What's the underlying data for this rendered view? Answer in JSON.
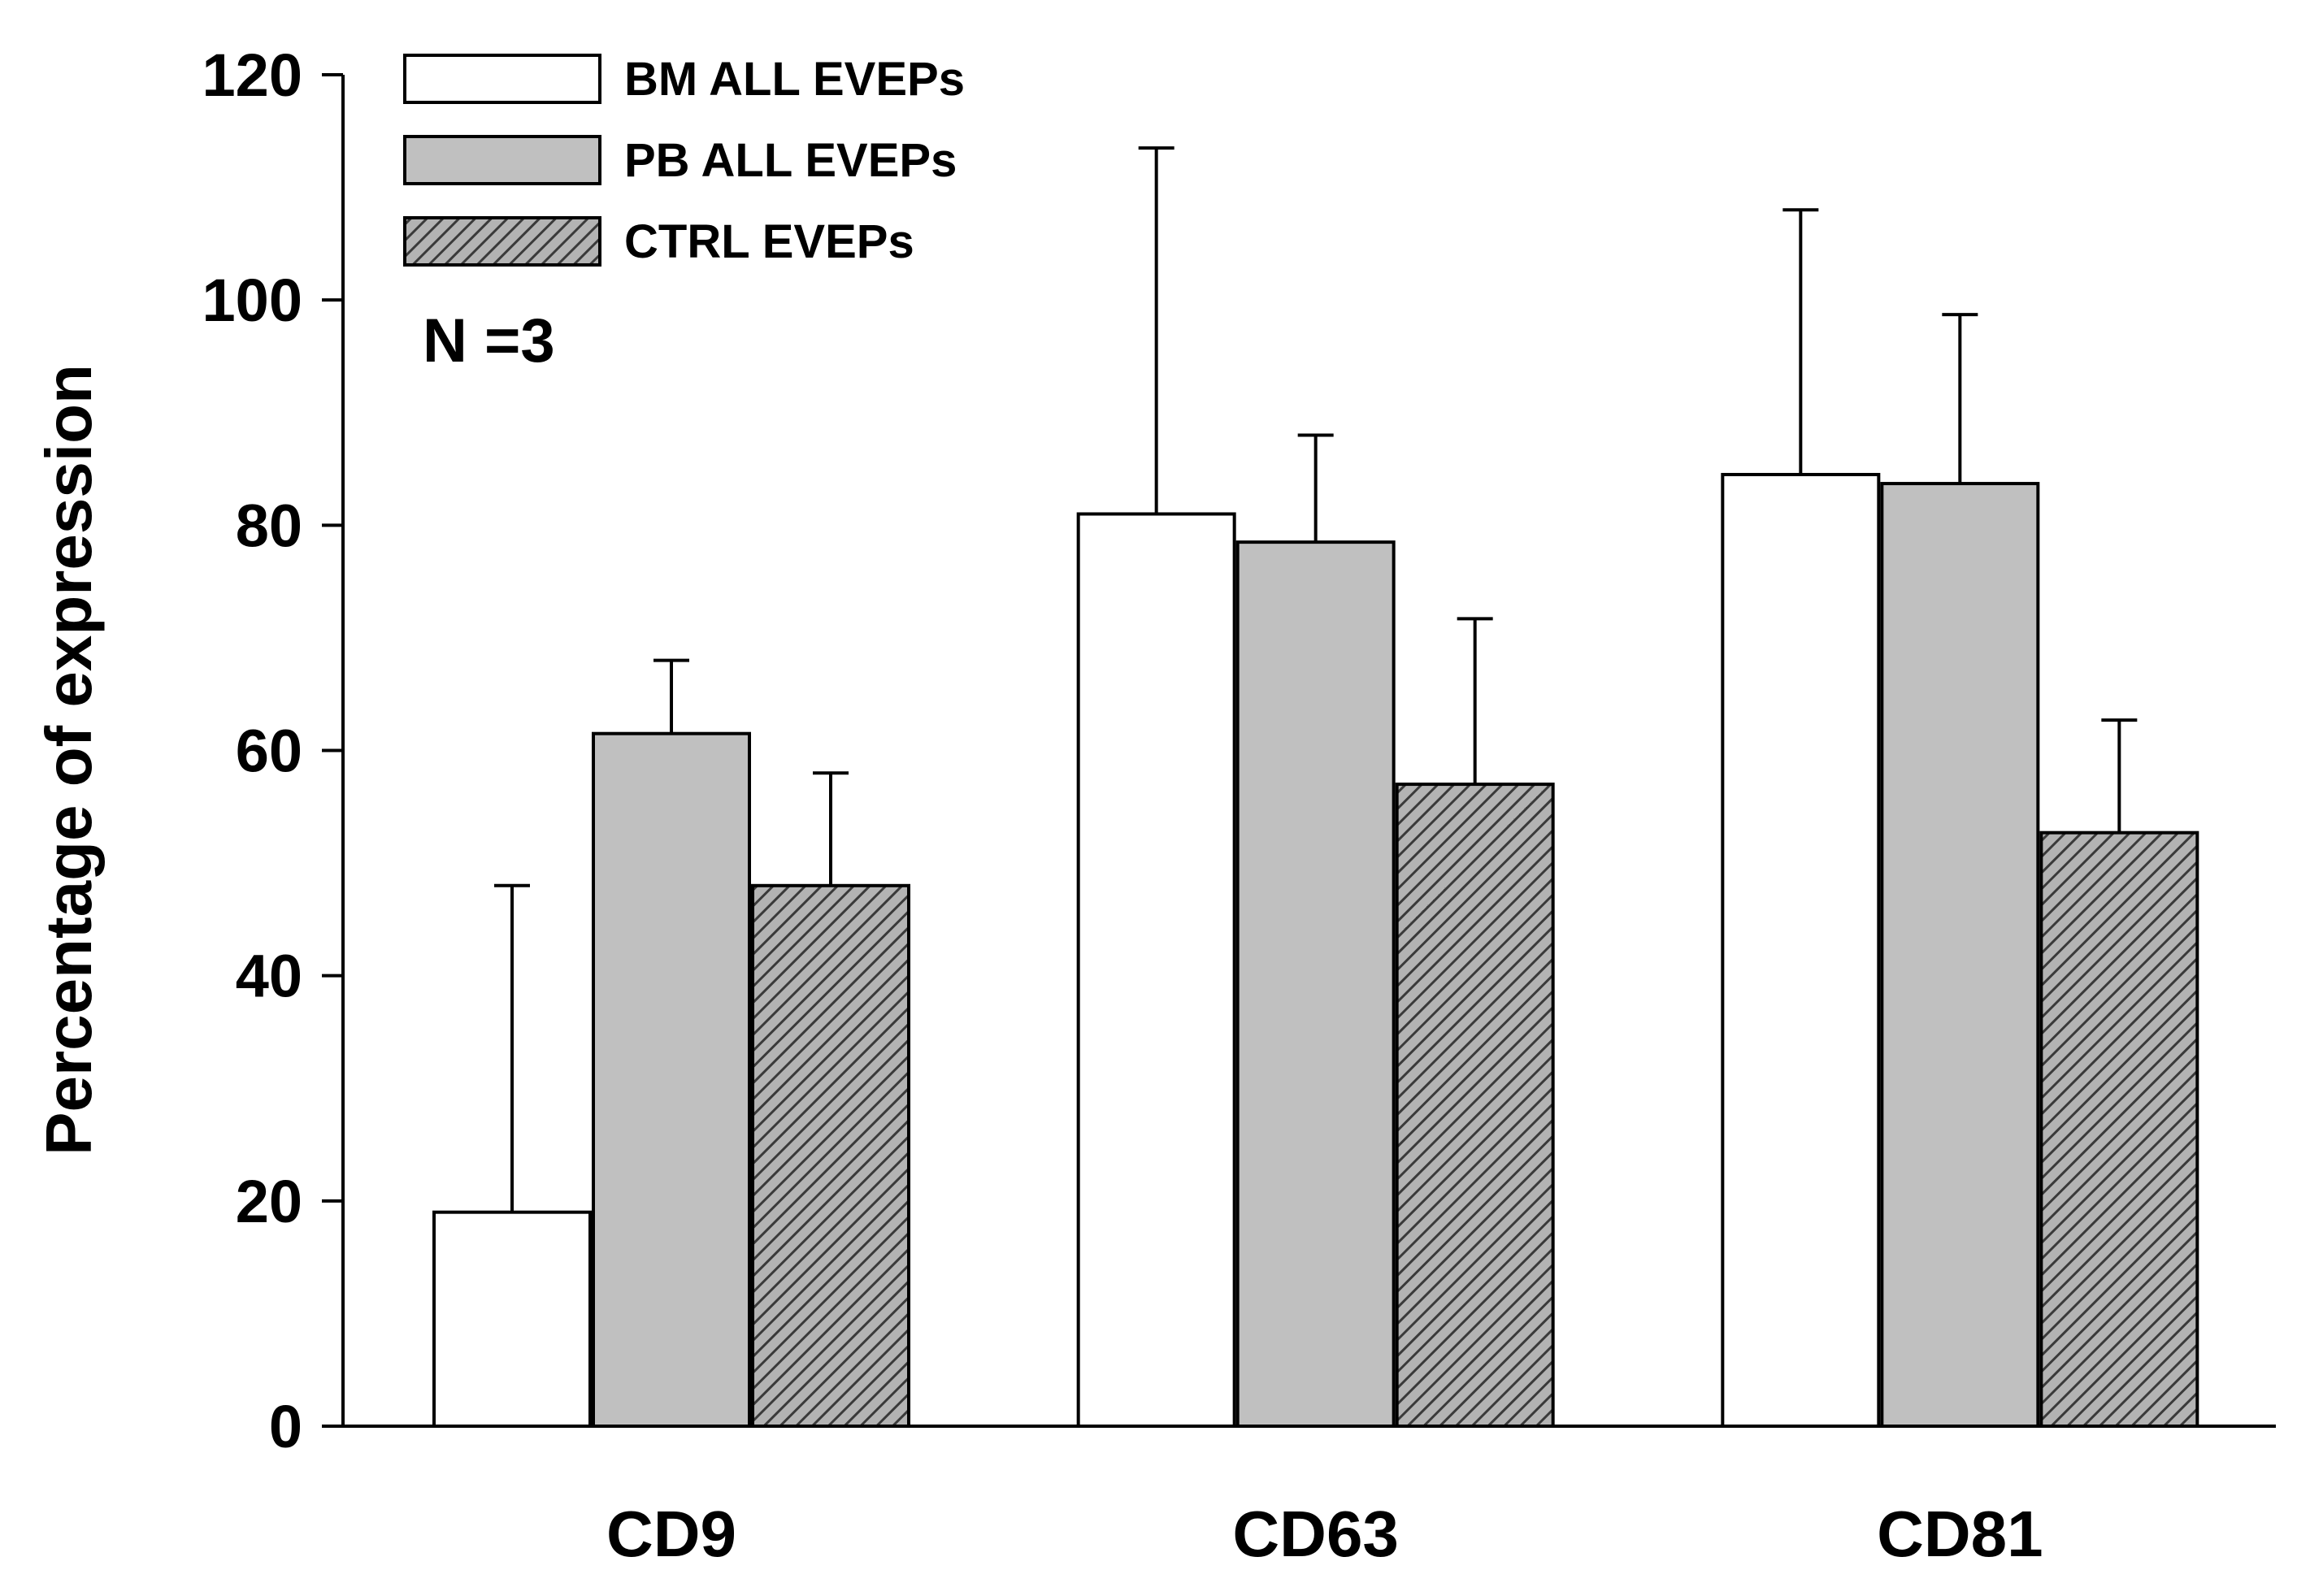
{
  "chart_data": {
    "type": "bar",
    "title": "",
    "xlabel": "",
    "ylabel": "Percentage of expression",
    "ylim": [
      0,
      120
    ],
    "yticks": [
      0,
      20,
      40,
      60,
      80,
      100,
      120
    ],
    "categories": [
      "CD9",
      "CD63",
      "CD81"
    ],
    "series": [
      {
        "name": "BM ALL EVEPs",
        "values": [
          19,
          81,
          84.5
        ],
        "errors": [
          29,
          32.5,
          23.5
        ],
        "fill": "#ffffff",
        "pattern": "solid"
      },
      {
        "name": "PB ALL EVEPs",
        "values": [
          61.5,
          78.5,
          83.7
        ],
        "errors": [
          6.5,
          9.5,
          15
        ],
        "fill": "#c0c0c0",
        "pattern": "solid"
      },
      {
        "name": "CTRL EVEPs",
        "values": [
          48,
          57,
          52.7
        ],
        "errors": [
          10,
          14.7,
          10
        ],
        "fill": "#a6a6a6",
        "pattern": "hatched"
      }
    ],
    "annotation": "N =3",
    "legend_position": "top-left",
    "grid": false
  }
}
